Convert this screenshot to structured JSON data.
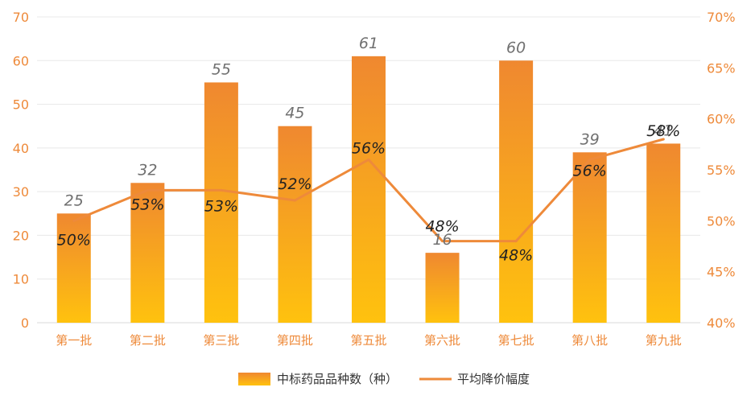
{
  "chart_data": {
    "type": "bar",
    "categories": [
      "第一批",
      "第二批",
      "第三批",
      "第四批",
      "第五批",
      "第六批",
      "第七批",
      "第八批",
      "第九批"
    ],
    "series": [
      {
        "name": "中标药品品种数（种）",
        "type": "bar",
        "axis": "left",
        "values": [
          25,
          32,
          55,
          45,
          61,
          16,
          60,
          39,
          41
        ],
        "labels": [
          "25",
          "32",
          "55",
          "45",
          "61",
          "16",
          "60",
          "39",
          "41"
        ]
      },
      {
        "name": "平均降价幅度",
        "type": "line",
        "axis": "right",
        "values": [
          50,
          53,
          53,
          52,
          56,
          48,
          48,
          56,
          58
        ],
        "labels": [
          "50%",
          "53%",
          "53%",
          "52%",
          "56%",
          "48%",
          "48%",
          "56%",
          "58%"
        ]
      }
    ],
    "y_left": {
      "range": [
        0,
        70
      ],
      "ticks": [
        "0",
        "10",
        "20",
        "30",
        "40",
        "50",
        "60",
        "70"
      ]
    },
    "y_right": {
      "range": [
        40,
        70
      ],
      "ticks": [
        "40%",
        "45%",
        "50%",
        "55%",
        "60%",
        "65%",
        "70%"
      ]
    },
    "grid": true,
    "legend_position": "bottom",
    "colors": {
      "bar_top": "#ef8830",
      "bar_bottom": "#ffc20e",
      "line": "#ee8a3a",
      "axis_text": "#ee8a3a",
      "value_label": "#707070",
      "line_label": "#222222",
      "grid": "#e8e8e8"
    }
  }
}
